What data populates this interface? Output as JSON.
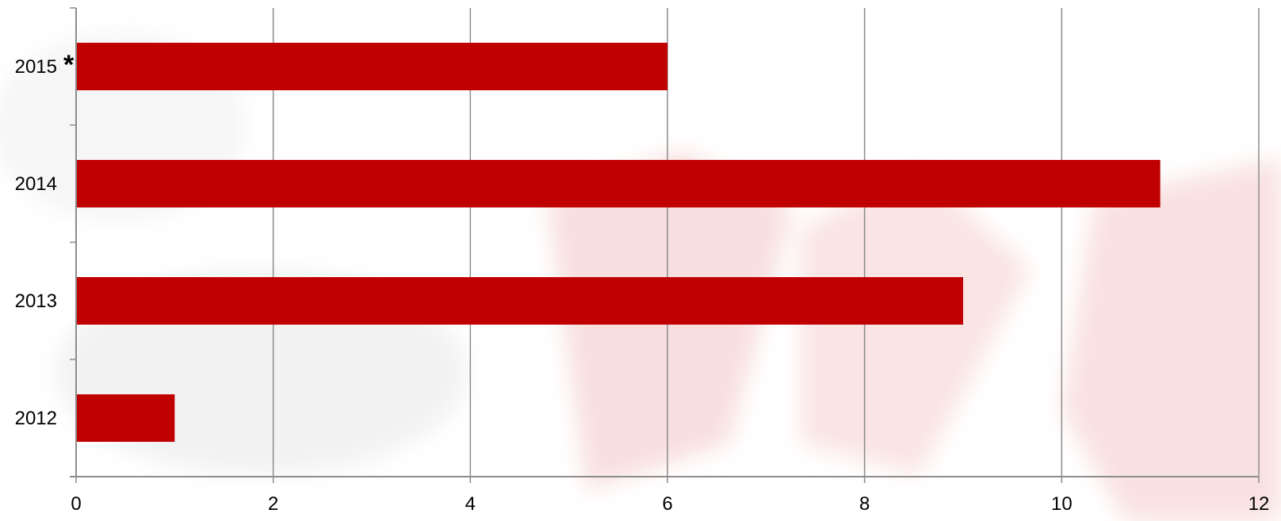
{
  "chart_data": {
    "type": "bar",
    "orientation": "horizontal",
    "categories": [
      "2012",
      "2013",
      "2014",
      "2015"
    ],
    "values": [
      1,
      9,
      11,
      6
    ],
    "category_annotations": {
      "2015": "*"
    },
    "xlim": [
      0,
      12
    ],
    "x_ticks": [
      "0",
      "2",
      "4",
      "6",
      "8",
      "10",
      "12"
    ],
    "grid": "vertical",
    "bar_color": "#C00000",
    "grid_color": "#8C8C8C",
    "title": "",
    "xlabel": "",
    "ylabel": ""
  }
}
